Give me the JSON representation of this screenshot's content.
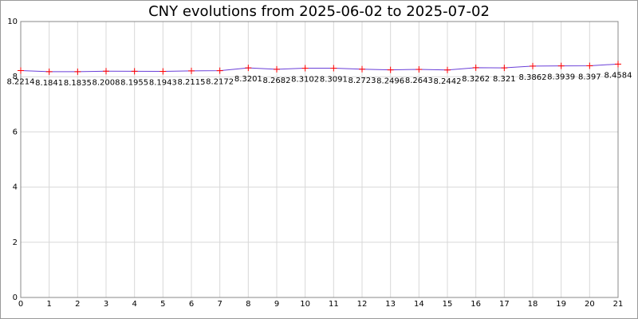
{
  "chart_data": {
    "type": "line",
    "title": "CNY evolutions from 2025-06-02 to 2025-07-02",
    "x": [
      0,
      1,
      2,
      3,
      4,
      5,
      6,
      7,
      8,
      9,
      10,
      11,
      12,
      13,
      14,
      15,
      16,
      17,
      18,
      19,
      20,
      21
    ],
    "series": [
      {
        "color": "#6a3fd8",
        "marker_color": "#ff0000",
        "values": [
          8.2214,
          8.1841,
          8.1835,
          8.2008,
          8.1955,
          8.1943,
          8.2115,
          8.2172,
          8.3201,
          8.2682,
          8.3102,
          8.3091,
          8.2723,
          8.2496,
          8.2643,
          8.2442,
          8.3262,
          8.321,
          8.3862,
          8.3939,
          8.397,
          8.4584
        ]
      }
    ],
    "xlim": [
      0,
      21
    ],
    "xticks": [
      0,
      1,
      2,
      3,
      4,
      5,
      6,
      7,
      8,
      9,
      10,
      11,
      12,
      13,
      14,
      15,
      16,
      17,
      18,
      19,
      20,
      21
    ],
    "ylim": [
      0,
      10
    ],
    "yticks": [
      0,
      2,
      4,
      6,
      8,
      10
    ],
    "grid": true
  }
}
